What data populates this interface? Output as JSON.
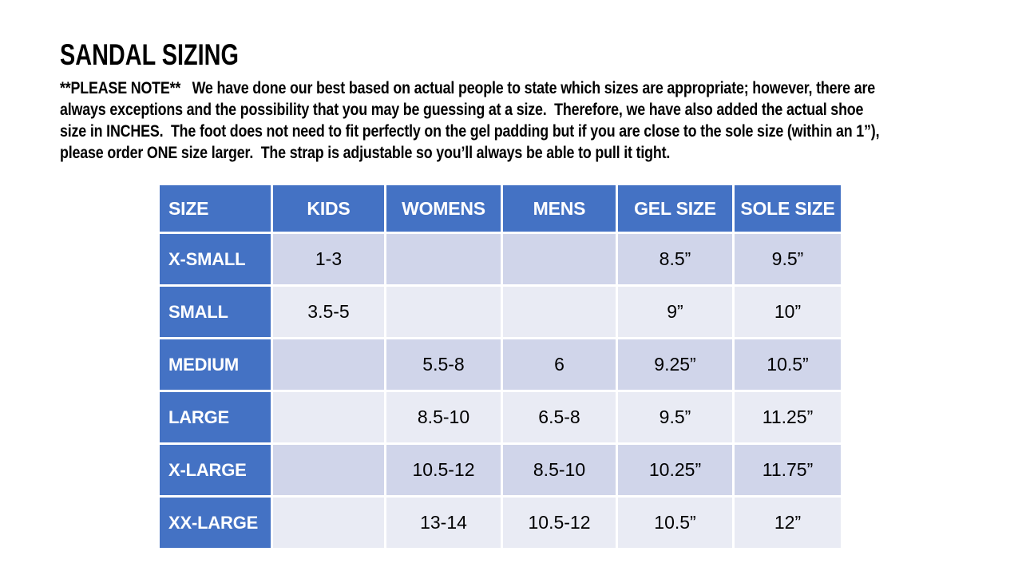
{
  "title": "SANDAL SIZING",
  "note": {
    "lines": [
      "**PLEASE NOTE**   We have done our best based on actual people to state which sizes are appropriate; however, there are",
      "always exceptions and the possibility that you may be guessing at a size.  Therefore, we have also added the actual shoe",
      "size in INCHES.  The foot does not need to fit perfectly on the gel padding but if you are close to the sole size (within an 1”),",
      "please order ONE size larger.  The strap is adjustable so you’ll always be able to pull it tight."
    ]
  },
  "table": {
    "headers": [
      "SIZE",
      "KIDS",
      "WOMENS",
      "MENS",
      "GEL SIZE",
      "SOLE SIZE"
    ],
    "rows": [
      {
        "cells": [
          "X-SMALL",
          "1-3",
          "",
          "",
          "8.5”",
          "9.5”"
        ]
      },
      {
        "cells": [
          "SMALL",
          "3.5-5",
          "",
          "",
          "9”",
          "10”"
        ]
      },
      {
        "cells": [
          "MEDIUM",
          "",
          "5.5-8",
          "6",
          "9.25”",
          "10.5”"
        ]
      },
      {
        "cells": [
          "LARGE",
          "",
          "8.5-10",
          "6.5-8",
          "9.5”",
          "11.25”"
        ]
      },
      {
        "cells": [
          "X-LARGE",
          "",
          "10.5-12",
          "8.5-10",
          "10.25”",
          "11.75”"
        ]
      },
      {
        "cells": [
          "XX-LARGE",
          "",
          "13-14",
          "10.5-12",
          "10.5”",
          "12”"
        ]
      }
    ]
  },
  "colors": {
    "page_bg": "#FFFFFF",
    "header_blue": "#4472C4",
    "header_text": "#FFFFFF",
    "band_dark": "#D0D5EA",
    "band_light": "#E9EBF4",
    "gridline": "#FFFFFF",
    "text_black": "#000000"
  }
}
